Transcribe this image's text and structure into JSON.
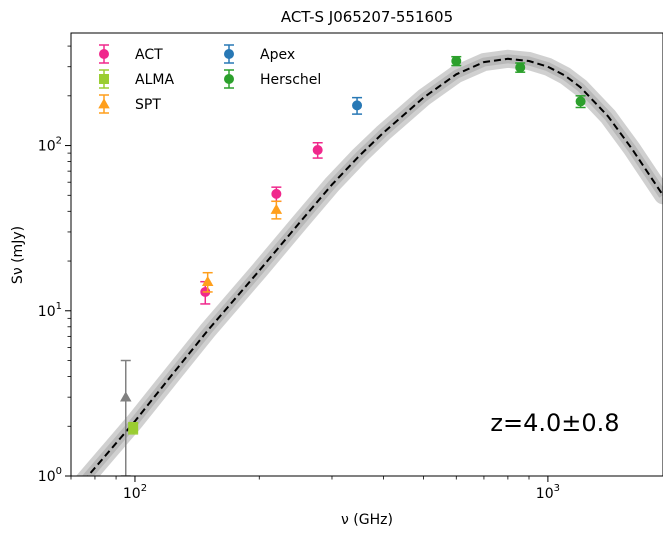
{
  "chart_data": {
    "type": "scatter",
    "title": "ACT-S J065207-551605",
    "xlabel": "ν (GHz)",
    "ylabel": "Sν (mJy)",
    "xscale": "log",
    "yscale": "log",
    "xlim": [
      70,
      1900
    ],
    "ylim": [
      1,
      480
    ],
    "x_ticks": [
      {
        "value": 100,
        "base": "10",
        "exp": "2"
      },
      {
        "value": 1000,
        "base": "10",
        "exp": "3"
      }
    ],
    "y_ticks": [
      {
        "value": 1,
        "base": "10",
        "exp": "0"
      },
      {
        "value": 10,
        "base": "10",
        "exp": "1"
      },
      {
        "value": 100,
        "base": "10",
        "exp": "2"
      }
    ],
    "annotation": "z=4.0±0.8",
    "legend_position": "top-left",
    "series": [
      {
        "name": "ACT",
        "color": "#f0288c",
        "marker": "circle",
        "points": [
          {
            "x": 148,
            "y": 13,
            "lo": 11,
            "hi": 15
          },
          {
            "x": 220,
            "y": 51,
            "lo": 46,
            "hi": 56
          },
          {
            "x": 277,
            "y": 94,
            "lo": 84,
            "hi": 104
          }
        ]
      },
      {
        "name": "ALMA",
        "color": "#9acd32",
        "marker": "square",
        "points": [
          {
            "x": 99,
            "y": 1.95,
            "lo": 1.8,
            "hi": 2.1
          }
        ]
      },
      {
        "name": "SPT",
        "color": "#ff9f1c",
        "marker": "triangle",
        "points": [
          {
            "x": 150,
            "y": 15,
            "lo": 13,
            "hi": 17
          },
          {
            "x": 220,
            "y": 41,
            "lo": 36,
            "hi": 46
          }
        ]
      },
      {
        "name": "Apex",
        "color": "#2878b5",
        "marker": "circle",
        "points": [
          {
            "x": 345,
            "y": 175,
            "lo": 155,
            "hi": 195
          }
        ]
      },
      {
        "name": "Herschel",
        "color": "#2ca02c",
        "marker": "circle",
        "points": [
          {
            "x": 600,
            "y": 325,
            "lo": 305,
            "hi": 345
          },
          {
            "x": 857,
            "y": 297,
            "lo": 278,
            "hi": 316
          },
          {
            "x": 1200,
            "y": 185,
            "lo": 170,
            "hi": 200
          }
        ]
      },
      {
        "name": "",
        "color": "#808080",
        "marker": "triangle",
        "points": [
          {
            "x": 95,
            "y": 3.0,
            "lo": 1.0,
            "hi": 5.0
          }
        ]
      }
    ],
    "model_fit": {
      "style": "dashed",
      "color": "#000000",
      "band_color": "#a9a9a9",
      "x": [
        75,
        80,
        90,
        100,
        120,
        150,
        200,
        250,
        300,
        350,
        400,
        500,
        600,
        700,
        800,
        900,
        1000,
        1100,
        1200,
        1400,
        1600,
        1900
      ],
      "y": [
        0.93,
        1.12,
        1.58,
        2.15,
        3.8,
        7.6,
        17.5,
        34,
        58,
        87,
        120,
        195,
        270,
        320,
        335,
        325,
        300,
        265,
        225,
        150,
        95,
        50
      ]
    }
  }
}
